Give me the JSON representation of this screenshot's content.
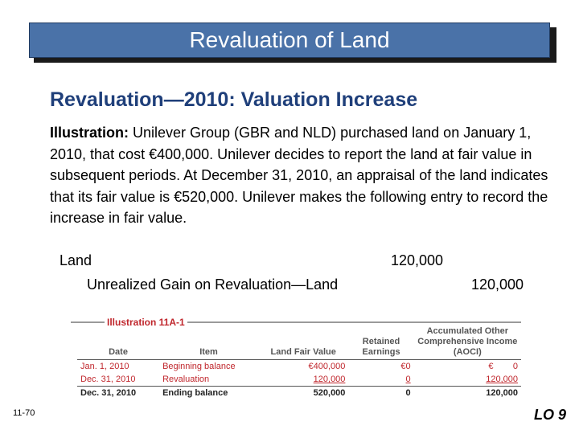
{
  "title": "Revaluation of Land",
  "subtitle": "Revaluation—2010: Valuation Increase",
  "illustration_label": "Illustration:",
  "illustration_text": "  Unilever Group (GBR and NLD) purchased land on January 1, 2010, that cost €400,000. Unilever decides to report the land at fair value in subsequent periods. At December 31, 2010, an appraisal of the land indicates that its fair value is €520,000. Unilever makes the following entry to record the increase in fair value.",
  "entry": {
    "debit_account": "Land",
    "debit_amount": "120,000",
    "credit_account": "Unrealized Gain on Revaluation—Land",
    "credit_amount": "120,000"
  },
  "figure": {
    "caption": "Illustration 11A-1",
    "headers": {
      "date": "Date",
      "item": "Item",
      "land": "Land Fair Value",
      "retained": "Retained Earnings",
      "oci": "Accumulated Other Comprehensive Income (AOCI)"
    },
    "rows": [
      {
        "date": "Jan. 1, 2010",
        "item": "Beginning balance",
        "land": "€400,000",
        "retained": "€0",
        "oci": "€        0"
      },
      {
        "date": "Dec. 31, 2010",
        "item": "Revaluation",
        "land": "120,000",
        "retained": "0",
        "oci": "120,000"
      },
      {
        "date": "Dec. 31, 2010",
        "item": "Ending balance",
        "land": "520,000",
        "retained": "0",
        "oci": "120,000"
      }
    ]
  },
  "page_number": "11-70",
  "learning_objective": "LO 9",
  "colors": {
    "title_bg": "#4a72a8",
    "subtitle": "#1f3f7a",
    "accent_red": "#c0272d"
  }
}
